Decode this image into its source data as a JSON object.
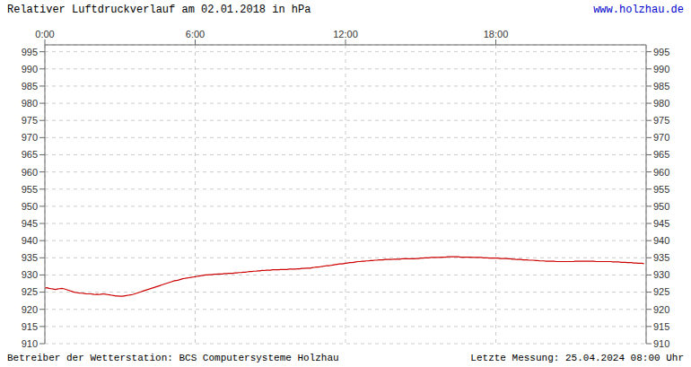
{
  "chart_data": {
    "type": "line",
    "title": "Relativer Luftdruckverlauf am 02.01.2018 in hPa",
    "annotations": [
      "www.holzhau.de",
      "Betreiber der Wetterstation: BCS Computersysteme Holzhau",
      "Letzte Messung: 25.04.2024 08:00 Uhr"
    ],
    "color": "#cc0000",
    "grid": true,
    "xlim": [
      0,
      288
    ],
    "xticks": [
      {
        "value": 0,
        "label": "0:00"
      },
      {
        "value": 72,
        "label": "6:00"
      },
      {
        "value": 144,
        "label": "12:00"
      },
      {
        "value": 216,
        "label": "18:00"
      }
    ],
    "ylim": [
      910,
      997
    ],
    "yticks": [
      910,
      915,
      920,
      925,
      930,
      935,
      940,
      945,
      950,
      955,
      960,
      965,
      970,
      975,
      980,
      985,
      990,
      995
    ],
    "x": [
      0,
      1,
      2,
      3,
      4,
      5,
      6,
      7,
      8,
      9,
      10,
      11,
      12,
      13,
      14,
      15,
      16,
      17,
      18,
      19,
      20,
      21,
      22,
      23,
      24,
      25,
      26,
      27,
      28,
      29,
      30,
      31,
      32,
      33,
      34,
      35,
      36,
      37,
      38,
      39,
      40,
      41,
      42,
      43,
      44,
      45,
      46,
      47,
      48,
      49,
      50,
      51,
      52,
      53,
      54,
      55,
      56,
      57,
      58,
      59,
      60,
      61,
      62,
      63,
      64,
      65,
      66,
      67,
      68,
      69,
      70,
      71,
      72,
      73,
      74,
      75,
      76,
      77,
      78,
      79,
      80,
      81,
      82,
      83,
      84,
      85,
      86,
      87,
      88,
      89,
      90,
      91,
      92,
      93,
      94,
      95,
      96,
      97,
      98,
      99,
      100,
      101,
      102,
      103,
      104,
      105,
      106,
      107,
      108,
      109,
      110,
      111,
      112,
      113,
      114,
      115,
      116,
      117,
      118,
      119,
      120,
      121,
      122,
      123,
      124,
      125,
      126,
      127,
      128,
      129,
      130,
      131,
      132,
      133,
      134,
      135,
      136,
      137,
      138,
      139,
      140,
      141,
      142,
      143,
      144,
      145,
      146,
      147,
      148,
      149,
      150,
      151,
      152,
      153,
      154,
      155,
      156,
      157,
      158,
      159,
      160,
      161,
      162,
      163,
      164,
      165,
      166,
      167,
      168,
      169,
      170,
      171,
      172,
      173,
      174,
      175,
      176,
      177,
      178,
      179,
      180,
      181,
      182,
      183,
      184,
      185,
      186,
      187,
      188,
      189,
      190,
      191,
      192,
      193,
      194,
      195,
      196,
      197,
      198,
      199,
      200,
      201,
      202,
      203,
      204,
      205,
      206,
      207,
      208,
      209,
      210,
      211,
      212,
      213,
      214,
      215,
      216,
      217,
      218,
      219,
      220,
      221,
      222,
      223,
      224,
      225,
      226,
      227,
      228,
      229,
      230,
      231,
      232,
      233,
      234,
      235,
      236,
      237,
      238,
      239,
      240,
      241,
      242,
      243,
      244,
      245,
      246,
      247,
      248,
      249,
      250,
      251,
      252,
      253,
      254,
      255,
      256,
      257,
      258,
      259,
      260,
      261,
      262,
      263,
      264,
      265,
      266,
      267,
      268,
      269,
      270,
      271,
      272,
      273,
      274,
      275,
      276,
      277,
      278,
      279,
      280,
      281,
      282,
      283,
      284,
      285,
      286,
      287
    ],
    "values": [
      926.2,
      926.3,
      926.1,
      926.0,
      925.9,
      925.8,
      925.9,
      926.0,
      926.1,
      926.0,
      925.8,
      925.6,
      925.4,
      925.2,
      925.0,
      924.9,
      924.8,
      924.7,
      924.7,
      924.6,
      924.5,
      924.5,
      924.5,
      924.4,
      924.3,
      924.4,
      924.3,
      924.4,
      924.5,
      924.4,
      924.3,
      924.2,
      924.1,
      924.0,
      923.9,
      923.9,
      923.8,
      923.8,
      923.9,
      924.0,
      924.1,
      924.2,
      924.3,
      924.5,
      924.7,
      924.9,
      925.1,
      925.3,
      925.5,
      925.7,
      925.9,
      926.1,
      926.3,
      926.5,
      926.7,
      926.9,
      927.1,
      927.3,
      927.5,
      927.7,
      927.9,
      928.1,
      928.3,
      928.4,
      928.5,
      928.7,
      928.9,
      929.0,
      929.1,
      929.2,
      929.3,
      929.4,
      929.5,
      929.6,
      929.7,
      929.8,
      929.9,
      930.0,
      930.0,
      930.1,
      930.1,
      930.2,
      930.2,
      930.3,
      930.3,
      930.3,
      930.4,
      930.4,
      930.5,
      930.5,
      930.5,
      930.6,
      930.6,
      930.7,
      930.7,
      930.8,
      930.8,
      930.9,
      931.0,
      931.0,
      931.1,
      931.1,
      931.2,
      931.2,
      931.3,
      931.3,
      931.4,
      931.4,
      931.4,
      931.5,
      931.5,
      931.5,
      931.5,
      931.6,
      931.6,
      931.6,
      931.6,
      931.7,
      931.7,
      931.7,
      931.7,
      931.8,
      931.8,
      931.9,
      931.9,
      932.0,
      932.0,
      932.0,
      932.1,
      932.2,
      932.3,
      932.3,
      932.4,
      932.5,
      932.6,
      932.7,
      932.7,
      932.8,
      932.9,
      933.0,
      933.1,
      933.2,
      933.2,
      933.3,
      933.4,
      933.5,
      933.6,
      933.6,
      933.7,
      933.8,
      933.9,
      933.9,
      934.0,
      934.0,
      934.1,
      934.1,
      934.2,
      934.2,
      934.3,
      934.3,
      934.4,
      934.4,
      934.4,
      934.5,
      934.5,
      934.5,
      934.5,
      934.6,
      934.6,
      934.6,
      934.6,
      934.7,
      934.7,
      934.7,
      934.7,
      934.7,
      934.7,
      934.7,
      934.8,
      934.8,
      934.9,
      934.9,
      935.0,
      935.0,
      935.0,
      935.1,
      935.1,
      935.1,
      935.1,
      935.1,
      935.2,
      935.2,
      935.2,
      935.3,
      935.3,
      935.3,
      935.3,
      935.3,
      935.3,
      935.2,
      935.2,
      935.2,
      935.2,
      935.2,
      935.2,
      935.1,
      935.1,
      935.1,
      935.1,
      935.1,
      935.0,
      935.0,
      935.0,
      934.9,
      934.9,
      934.9,
      934.9,
      934.9,
      934.8,
      934.8,
      934.8,
      934.8,
      934.7,
      934.7,
      934.6,
      934.6,
      934.5,
      934.5,
      934.5,
      934.4,
      934.4,
      934.4,
      934.3,
      934.3,
      934.3,
      934.2,
      934.2,
      934.1,
      934.1,
      934.1,
      934.0,
      934.0,
      934.0,
      934.0,
      934.0,
      933.9,
      933.9,
      933.9,
      933.9,
      933.9,
      933.9,
      933.9,
      933.9,
      933.9,
      934.0,
      934.0,
      934.0,
      934.0,
      934.0,
      934.0,
      934.0,
      934.0,
      934.0,
      934.0,
      933.9,
      933.9,
      933.9,
      933.9,
      933.9,
      933.9,
      933.9,
      933.9,
      933.8,
      933.8,
      933.8,
      933.8,
      933.7,
      933.7,
      933.7,
      933.6,
      933.6,
      933.6,
      933.5,
      933.5,
      933.4,
      933.4,
      933.4,
      933.3
    ]
  }
}
